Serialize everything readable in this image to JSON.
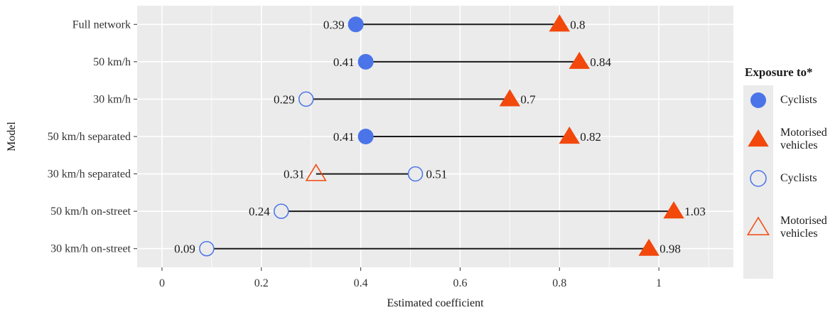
{
  "chart_data": {
    "type": "dumbbell",
    "title": "",
    "xlabel": "Estimated coefficient",
    "ylabel": "Model",
    "xlim": [
      -0.05,
      1.15
    ],
    "x_ticks": [
      0,
      0.2,
      0.4,
      0.6,
      0.8,
      1
    ],
    "x_tick_labels": [
      "0",
      "0.2",
      "0.4",
      "0.6",
      "0.8",
      "1"
    ],
    "grid": true,
    "legend_position": "right",
    "categories": [
      "Full network",
      "50 km/h",
      "30 km/h",
      "50 km/h separated",
      "30 km/h separated",
      "50 km/h on-street",
      "30 km/h on-street"
    ],
    "rows": [
      {
        "model": "Full network",
        "cyclists": 0.39,
        "cyclists_label": "0.39",
        "cyclists_filled": true,
        "motor": 0.8,
        "motor_label": "0.8",
        "motor_filled": true
      },
      {
        "model": "50 km/h",
        "cyclists": 0.41,
        "cyclists_label": "0.41",
        "cyclists_filled": true,
        "motor": 0.84,
        "motor_label": "0.84",
        "motor_filled": true
      },
      {
        "model": "30 km/h",
        "cyclists": 0.29,
        "cyclists_label": "0.29",
        "cyclists_filled": false,
        "motor": 0.7,
        "motor_label": "0.7",
        "motor_filled": true
      },
      {
        "model": "50 km/h separated",
        "cyclists": 0.41,
        "cyclists_label": "0.41",
        "cyclists_filled": true,
        "motor": 0.82,
        "motor_label": "0.82",
        "motor_filled": true
      },
      {
        "model": "30 km/h separated",
        "cyclists": 0.51,
        "cyclists_label": "0.51",
        "cyclists_filled": false,
        "motor": 0.31,
        "motor_label": "0.31",
        "motor_filled": false
      },
      {
        "model": "50 km/h on-street",
        "cyclists": 0.24,
        "cyclists_label": "0.24",
        "cyclists_filled": false,
        "motor": 1.03,
        "motor_label": "1.03",
        "motor_filled": true
      },
      {
        "model": "30 km/h on-street",
        "cyclists": 0.09,
        "cyclists_label": "0.09",
        "cyclists_filled": false,
        "motor": 0.98,
        "motor_label": "0.98",
        "motor_filled": true
      }
    ],
    "legend": {
      "title": "Exposure to*",
      "items": [
        {
          "label": "Cyclists",
          "shape": "circle",
          "filled": true
        },
        {
          "label": "Motorised vehicles",
          "shape": "triangle",
          "filled": true
        },
        {
          "label": "Cyclists",
          "shape": "circle",
          "filled": false
        },
        {
          "label": "Motorised vehicles",
          "shape": "triangle",
          "filled": false
        }
      ]
    },
    "colors": {
      "cyclists": "#4a74e8",
      "motor": "#f2480c",
      "panel": "#ebebeb",
      "grid": "#ffffff",
      "segment": "#1a1a1a"
    }
  }
}
